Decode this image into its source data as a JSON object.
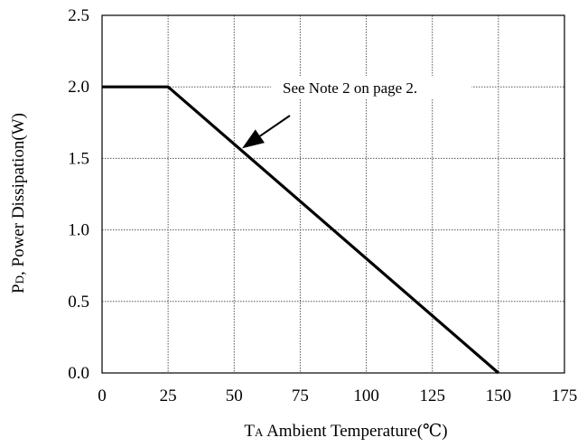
{
  "chart_data": {
    "type": "line",
    "x_ticks": [
      "0",
      "25",
      "50",
      "75",
      "100",
      "125",
      "150",
      "175"
    ],
    "y_ticks": [
      "0.0",
      "0.5",
      "1.0",
      "1.5",
      "2.0",
      "2.5"
    ],
    "xlim": [
      0,
      175
    ],
    "ylim": [
      0,
      2.5
    ],
    "grid": true,
    "xlabel": {
      "prefix": "T",
      "subscript": "A",
      "rest": " Ambient Temperature(℃)"
    },
    "ylabel": {
      "prefix": "P",
      "subscript": "D",
      "rest": ", Power Dissipation(W)"
    },
    "series": [
      {
        "x": [
          0,
          25,
          150
        ],
        "y": [
          2.0,
          2.0,
          0.0
        ]
      }
    ],
    "annotation": {
      "text": "See Note 2 on page 2.",
      "points_to": {
        "x": 53,
        "y": 1.57
      }
    }
  }
}
